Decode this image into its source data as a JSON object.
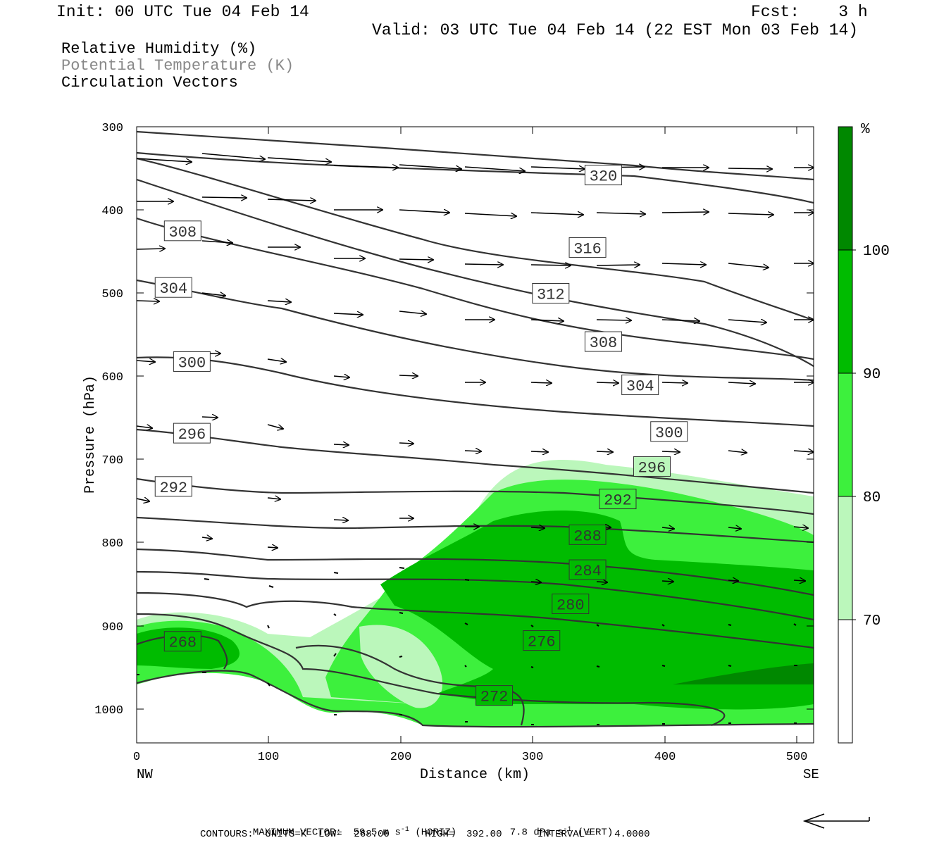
{
  "header": {
    "init": "Init: 00 UTC Tue 04 Feb 14",
    "fcst": "Fcst:    3 h",
    "valid": "Valid: 03 UTC Tue 04 Feb 14 (22 EST Mon 03 Feb 14)"
  },
  "legend": {
    "rh": "Relative Humidity (%)",
    "theta": "Potential Temperature (K)",
    "vectors": "Circulation Vectors",
    "theta_color": "#888888"
  },
  "colorbar": {
    "unit": "%",
    "levels": [
      "70",
      "80",
      "90",
      "100"
    ],
    "colors": [
      "#ffffff",
      "#bbf7bb",
      "#3df03d",
      "#00bb00",
      "#008800"
    ]
  },
  "axes": {
    "xlabel": "Distance (km)",
    "ylabel": "Pressure (hPa)",
    "left_end": "NW",
    "right_end": "SE",
    "xticks": [
      "0",
      "100",
      "200",
      "300",
      "400",
      "500"
    ],
    "yticks": [
      "300",
      "400",
      "500",
      "600",
      "700",
      "800",
      "900",
      "1000"
    ]
  },
  "footer": {
    "maxvec_label": "MAXIMUM VECTOR:",
    "horiz_value": "59.5",
    "horiz_unit_pre": "m s",
    "horiz_exp": "-1",
    "horiz_tag": "(HORIZ)",
    "vert_value": "7.8",
    "vert_unit_pre": "dPa s",
    "vert_exp": "-1",
    "vert_tag": "(VERT)",
    "contours": "CONTOURS:  UNITS=K  LOW=  268.00      HIGH=  392.00      INTERVAL=    4.0000"
  },
  "chart_data": {
    "type": "cross-section",
    "xlim": [
      0,
      515
    ],
    "ylim": [
      1040,
      300
    ],
    "y_scale": "linear (pressure, inverted)",
    "contour_labels": [
      {
        "label": "320",
        "x": 355,
        "p": 358
      },
      {
        "label": "316",
        "x": 343,
        "p": 445
      },
      {
        "label": "312",
        "x": 315,
        "p": 500
      },
      {
        "label": "308",
        "x": 35,
        "p": 425
      },
      {
        "label": "308",
        "x": 355,
        "p": 558
      },
      {
        "label": "304",
        "x": 28,
        "p": 493
      },
      {
        "label": "304",
        "x": 383,
        "p": 610
      },
      {
        "label": "300",
        "x": 42,
        "p": 582
      },
      {
        "label": "300",
        "x": 405,
        "p": 666
      },
      {
        "label": "296",
        "x": 42,
        "p": 668
      },
      {
        "label": "296",
        "x": 392,
        "p": 708
      },
      {
        "label": "292",
        "x": 28,
        "p": 732
      },
      {
        "label": "292",
        "x": 366,
        "p": 747
      },
      {
        "label": "288",
        "x": 343,
        "p": 790
      },
      {
        "label": "284",
        "x": 343,
        "p": 832
      },
      {
        "label": "280",
        "x": 330,
        "p": 873
      },
      {
        "label": "276",
        "x": 308,
        "p": 917
      },
      {
        "label": "272",
        "x": 272,
        "p": 983
      },
      {
        "label": "268",
        "x": 35,
        "p": 918
      }
    ]
  }
}
